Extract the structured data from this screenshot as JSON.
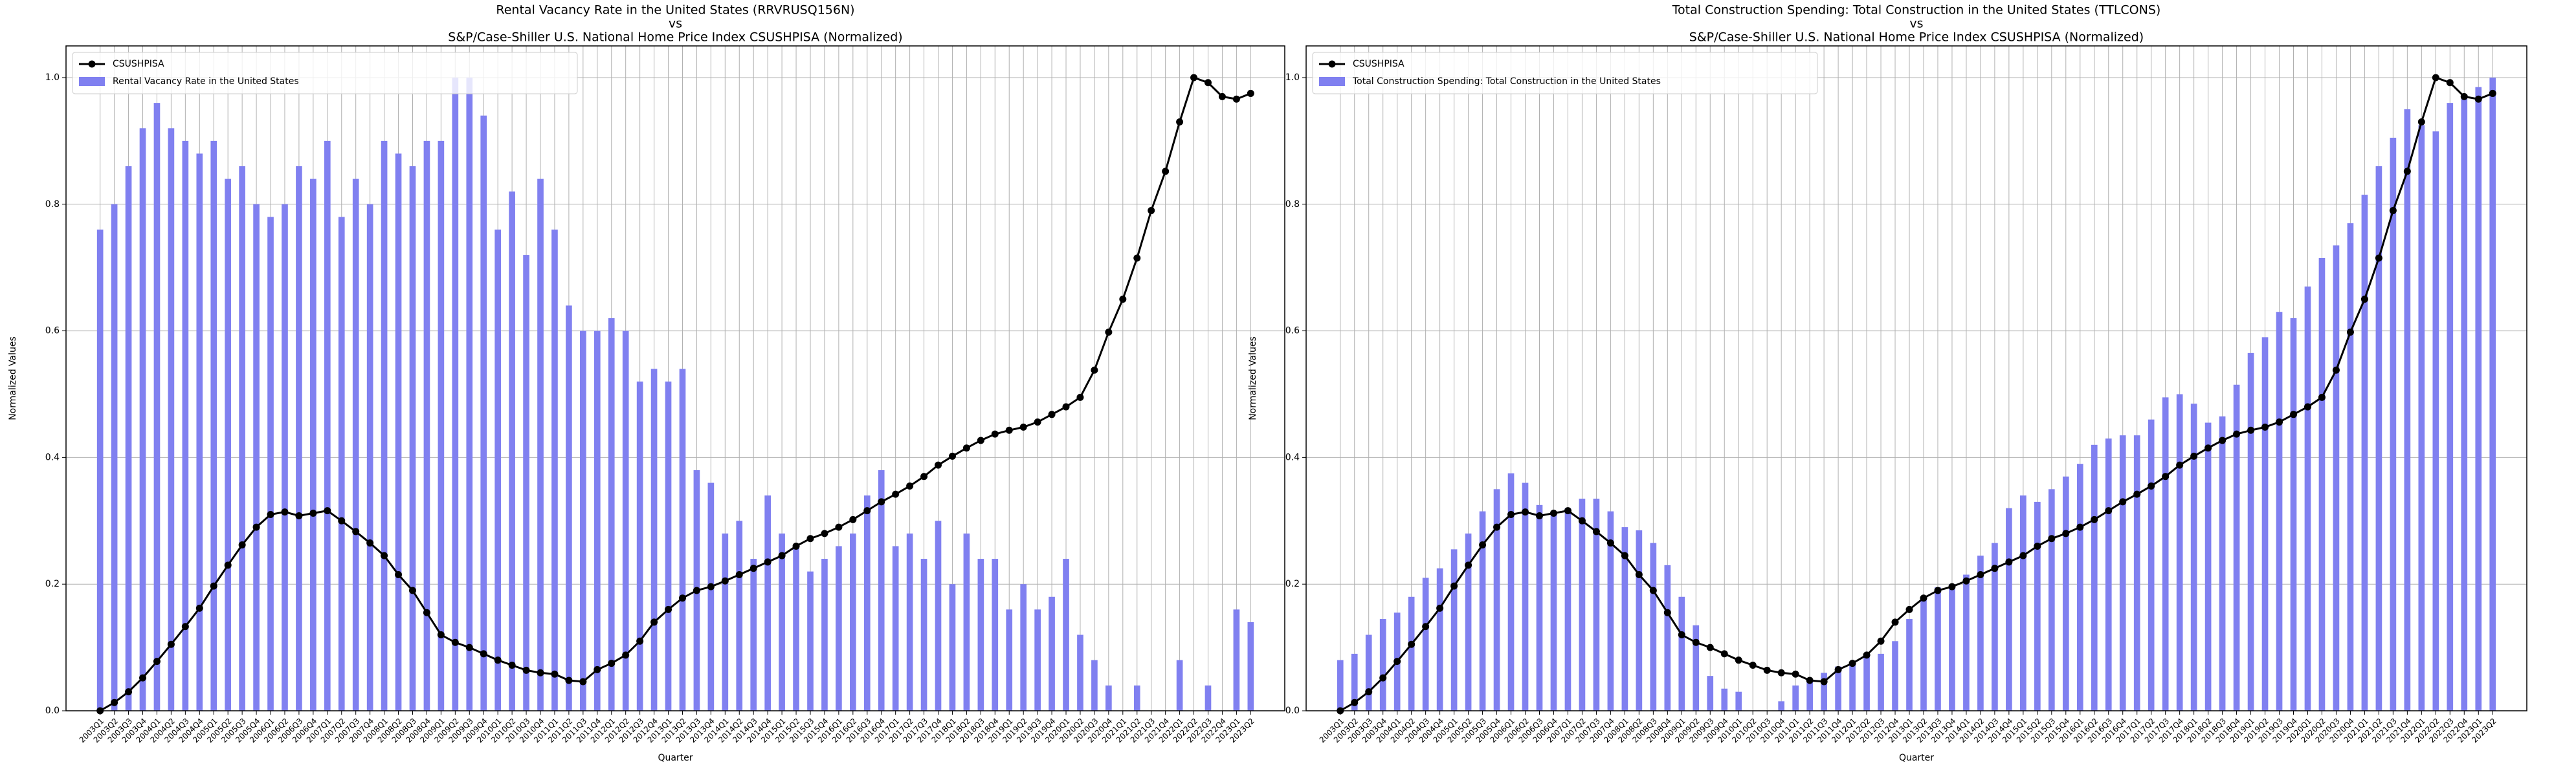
{
  "chart_data": [
    {
      "type": "combo",
      "title": [
        "Rental Vacancy Rate in the United States (RRVRUSQ156N)",
        "vs",
        "S&P/Case-Shiller U.S. National Home Price Index CSUSHPISA (Normalized)"
      ],
      "xlabel": "Quarter",
      "ylabel": "Normalized Values",
      "categories": [
        "2003Q1",
        "2003Q2",
        "2003Q3",
        "2003Q4",
        "2004Q1",
        "2004Q2",
        "2004Q3",
        "2004Q4",
        "2005Q1",
        "2005Q2",
        "2005Q3",
        "2005Q4",
        "2006Q1",
        "2006Q2",
        "2006Q3",
        "2006Q4",
        "2007Q1",
        "2007Q2",
        "2007Q3",
        "2007Q4",
        "2008Q1",
        "2008Q2",
        "2008Q3",
        "2008Q4",
        "2009Q1",
        "2009Q2",
        "2009Q3",
        "2009Q4",
        "2010Q1",
        "2010Q2",
        "2010Q3",
        "2010Q4",
        "2011Q1",
        "2011Q2",
        "2011Q3",
        "2011Q4",
        "2012Q1",
        "2012Q2",
        "2012Q3",
        "2012Q4",
        "2013Q1",
        "2013Q2",
        "2013Q3",
        "2013Q4",
        "2014Q1",
        "2014Q2",
        "2014Q3",
        "2014Q4",
        "2015Q1",
        "2015Q2",
        "2015Q3",
        "2015Q4",
        "2016Q1",
        "2016Q2",
        "2016Q3",
        "2016Q4",
        "2017Q1",
        "2017Q2",
        "2017Q3",
        "2017Q4",
        "2018Q1",
        "2018Q2",
        "2018Q3",
        "2018Q4",
        "2019Q1",
        "2019Q2",
        "2019Q3",
        "2019Q4",
        "2020Q1",
        "2020Q2",
        "2020Q3",
        "2020Q4",
        "2021Q1",
        "2021Q2",
        "2021Q3",
        "2021Q4",
        "2022Q1",
        "2022Q2",
        "2022Q3",
        "2022Q4",
        "2023Q1",
        "2023Q2"
      ],
      "series": [
        {
          "name": "CSUSHPISA",
          "type": "line",
          "color": "#000000",
          "values": [
            0.0,
            0.013,
            0.03,
            0.052,
            0.078,
            0.105,
            0.133,
            0.162,
            0.197,
            0.23,
            0.262,
            0.29,
            0.31,
            0.314,
            0.308,
            0.312,
            0.316,
            0.3,
            0.283,
            0.265,
            0.245,
            0.215,
            0.19,
            0.155,
            0.12,
            0.108,
            0.1,
            0.09,
            0.08,
            0.072,
            0.064,
            0.06,
            0.058,
            0.048,
            0.046,
            0.065,
            0.075,
            0.088,
            0.11,
            0.14,
            0.16,
            0.178,
            0.19,
            0.196,
            0.205,
            0.215,
            0.225,
            0.235,
            0.245,
            0.26,
            0.272,
            0.28,
            0.29,
            0.302,
            0.316,
            0.33,
            0.342,
            0.355,
            0.37,
            0.388,
            0.402,
            0.415,
            0.427,
            0.437,
            0.443,
            0.448,
            0.456,
            0.468,
            0.48,
            0.495,
            0.538,
            0.598,
            0.65,
            0.715,
            0.79,
            0.852,
            0.93,
            1.0,
            0.992,
            0.97,
            0.966,
            0.975
          ]
        },
        {
          "name": "Rental Vacancy Rate in the United States",
          "type": "bar",
          "color": "#8080f0",
          "values": [
            0.76,
            0.8,
            0.86,
            0.92,
            0.96,
            0.92,
            0.9,
            0.88,
            0.9,
            0.84,
            0.86,
            0.8,
            0.78,
            0.8,
            0.86,
            0.84,
            0.9,
            0.78,
            0.84,
            0.8,
            0.9,
            0.88,
            0.86,
            0.9,
            0.9,
            1.0,
            1.0,
            0.94,
            0.76,
            0.82,
            0.72,
            0.84,
            0.76,
            0.64,
            0.6,
            0.6,
            0.62,
            0.6,
            0.52,
            0.54,
            0.52,
            0.54,
            0.38,
            0.36,
            0.28,
            0.3,
            0.24,
            0.34,
            0.28,
            0.26,
            0.22,
            0.24,
            0.26,
            0.28,
            0.34,
            0.38,
            0.26,
            0.28,
            0.24,
            0.3,
            0.2,
            0.28,
            0.24,
            0.24,
            0.16,
            0.2,
            0.16,
            0.18,
            0.24,
            0.12,
            0.08,
            0.04,
            0.0,
            0.04,
            0.0,
            0.0,
            0.08,
            0.0,
            0.04,
            0.0,
            0.16,
            0.14
          ]
        }
      ],
      "ylim": [
        0,
        1.05
      ],
      "yticks": [
        {
          "value": 0,
          "label": "0.0"
        },
        {
          "value": 0.2,
          "label": "0.2"
        },
        {
          "value": 0.4,
          "label": "0.4"
        },
        {
          "value": 0.6,
          "label": "0.6"
        },
        {
          "value": 0.8,
          "label": "0.8"
        },
        {
          "value": 1,
          "label": "1.0"
        }
      ],
      "grid": true,
      "legend": "upper left"
    },
    {
      "type": "combo",
      "title": [
        "Total Construction Spending: Total Construction in the United States (TTLCONS)",
        "vs",
        "S&P/Case-Shiller U.S. National Home Price Index CSUSHPISA (Normalized)"
      ],
      "xlabel": "Quarter",
      "ylabel": "Normalized Values",
      "categories": [
        "2003Q1",
        "2003Q2",
        "2003Q3",
        "2003Q4",
        "2004Q1",
        "2004Q2",
        "2004Q3",
        "2004Q4",
        "2005Q1",
        "2005Q2",
        "2005Q3",
        "2005Q4",
        "2006Q1",
        "2006Q2",
        "2006Q3",
        "2006Q4",
        "2007Q1",
        "2007Q2",
        "2007Q3",
        "2007Q4",
        "2008Q1",
        "2008Q2",
        "2008Q3",
        "2008Q4",
        "2009Q1",
        "2009Q2",
        "2009Q3",
        "2009Q4",
        "2010Q1",
        "2010Q2",
        "2010Q3",
        "2010Q4",
        "2011Q1",
        "2011Q2",
        "2011Q3",
        "2011Q4",
        "2012Q1",
        "2012Q2",
        "2012Q3",
        "2012Q4",
        "2013Q1",
        "2013Q2",
        "2013Q3",
        "2013Q4",
        "2014Q1",
        "2014Q2",
        "2014Q3",
        "2014Q4",
        "2015Q1",
        "2015Q2",
        "2015Q3",
        "2015Q4",
        "2016Q1",
        "2016Q2",
        "2016Q3",
        "2016Q4",
        "2017Q1",
        "2017Q2",
        "2017Q3",
        "2017Q4",
        "2018Q1",
        "2018Q2",
        "2018Q3",
        "2018Q4",
        "2019Q1",
        "2019Q2",
        "2019Q3",
        "2019Q4",
        "2020Q1",
        "2020Q2",
        "2020Q3",
        "2020Q4",
        "2021Q1",
        "2021Q2",
        "2021Q3",
        "2021Q4",
        "2022Q1",
        "2022Q2",
        "2022Q3",
        "2022Q4",
        "2023Q1",
        "2023Q2"
      ],
      "series": [
        {
          "name": "CSUSHPISA",
          "type": "line",
          "color": "#000000",
          "values": [
            0.0,
            0.013,
            0.03,
            0.052,
            0.078,
            0.105,
            0.133,
            0.162,
            0.197,
            0.23,
            0.262,
            0.29,
            0.31,
            0.314,
            0.308,
            0.312,
            0.316,
            0.3,
            0.283,
            0.265,
            0.245,
            0.215,
            0.19,
            0.155,
            0.12,
            0.108,
            0.1,
            0.09,
            0.08,
            0.072,
            0.064,
            0.06,
            0.058,
            0.048,
            0.046,
            0.065,
            0.075,
            0.088,
            0.11,
            0.14,
            0.16,
            0.178,
            0.19,
            0.196,
            0.205,
            0.215,
            0.225,
            0.235,
            0.245,
            0.26,
            0.272,
            0.28,
            0.29,
            0.302,
            0.316,
            0.33,
            0.342,
            0.355,
            0.37,
            0.388,
            0.402,
            0.415,
            0.427,
            0.437,
            0.443,
            0.448,
            0.456,
            0.468,
            0.48,
            0.495,
            0.538,
            0.598,
            0.65,
            0.715,
            0.79,
            0.852,
            0.93,
            1.0,
            0.992,
            0.97,
            0.966,
            0.975
          ]
        },
        {
          "name": "Total Construction Spending: Total Construction in the United States",
          "type": "bar",
          "color": "#8080f0",
          "values": [
            0.08,
            0.09,
            0.12,
            0.145,
            0.155,
            0.18,
            0.21,
            0.225,
            0.255,
            0.28,
            0.315,
            0.35,
            0.375,
            0.36,
            0.325,
            0.315,
            0.32,
            0.335,
            0.335,
            0.315,
            0.29,
            0.285,
            0.265,
            0.23,
            0.18,
            0.135,
            0.055,
            0.035,
            0.03,
            0.0,
            0.0,
            0.015,
            0.04,
            0.05,
            0.06,
            0.07,
            0.075,
            0.085,
            0.09,
            0.11,
            0.145,
            0.18,
            0.195,
            0.2,
            0.215,
            0.245,
            0.265,
            0.32,
            0.34,
            0.33,
            0.35,
            0.37,
            0.39,
            0.42,
            0.43,
            0.435,
            0.435,
            0.46,
            0.495,
            0.5,
            0.485,
            0.455,
            0.465,
            0.515,
            0.565,
            0.59,
            0.63,
            0.62,
            0.67,
            0.715,
            0.735,
            0.77,
            0.815,
            0.86,
            0.905,
            0.95,
            0.925,
            0.915,
            0.96,
            0.97,
            0.985,
            1.0
          ]
        }
      ],
      "ylim": [
        0,
        1.05
      ],
      "yticks": [
        {
          "value": 0,
          "label": "0.0"
        },
        {
          "value": 0.2,
          "label": "0.2"
        },
        {
          "value": 0.4,
          "label": "0.4"
        },
        {
          "value": 0.6,
          "label": "0.6"
        },
        {
          "value": 0.8,
          "label": "0.8"
        },
        {
          "value": 1,
          "label": "1.0"
        }
      ],
      "grid": true,
      "legend": "upper left"
    }
  ]
}
